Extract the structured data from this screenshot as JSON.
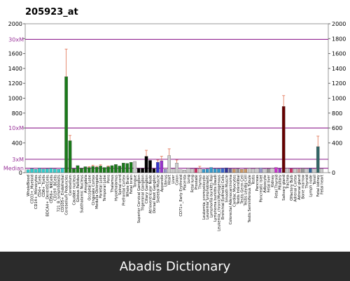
{
  "chart_data": {
    "type": "bar",
    "title": "205923_at",
    "ylim": [
      0,
      2000
    ],
    "yticks": [
      0,
      400,
      600,
      800,
      1000,
      1200,
      1400,
      1600,
      1800,
      2000
    ],
    "ytick_labels": [
      "0",
      "400",
      "600",
      "800",
      "1000",
      "1200",
      "1400",
      "1600",
      "1800",
      "2000"
    ],
    "reference_lines": [
      {
        "label": "30xM",
        "value": 1790,
        "color": "#993399"
      },
      {
        "label": "10xM",
        "value": 600,
        "color": "#993399"
      },
      {
        "label": "3xM",
        "value": 180,
        "color": "#993399"
      },
      {
        "label": "Median",
        "value": 60,
        "color": "#993399"
      }
    ],
    "category_labels": [
      "WholeBlood",
      "CD33+_Myeloid",
      "CD14+_Monocytes",
      "CD4+_Tcells",
      "CD8+_Tcells",
      "BDCA4+_DentriticCells",
      "CD56+_NKCells",
      "CD19+_BCells",
      "721_B_lymphoblasts",
      "CD105+_Endothelial",
      "Cerebellum Peduncles",
      "Cerebellum",
      "Caudate nucleus",
      "Globus Pallidus",
      "Subthalamic Nucleus",
      "Amygdala",
      "Occipital Lobe",
      "Cingulate Cortex",
      "Medulla Oblongata",
      "Parietal Lobe",
      "Temporal Lobe",
      "Pons",
      "Thalamus",
      "Hypothalamus",
      "Spinal cord",
      "Prefrontal Cortex",
      "Whole Brain",
      "Fetal brain",
      "Tongue",
      "Superior Cervical Ganglion",
      "Trigeminal Ganglion",
      "Ciliary Ganglion",
      "Atrioventricular Node",
      "Dorsal Root Ganglion",
      "Skeletal Muscle",
      "Appendix",
      "Uterus",
      "Heart",
      "Liver",
      "Colon",
      "CD71+_Early Erythroid",
      "Placenta",
      "Lung",
      "Fetal lung",
      "Prostate",
      "Thymus",
      "Leukemia_promyelocytic",
      "Leukemia_lymphoblastic",
      "Lymphoma burkitts Raji",
      "Lymphoma burkitts Daudi",
      "Leukemia_chronicMyelogenous",
      "Bronchial Epithelial Cells",
      "Smooth Muscle",
      "Colorectal Adenocarcinoma",
      "Cardiac Myocytes",
      "Testis Interstitial",
      "Testis Germ Cell",
      "Testis Leydig Cell",
      "Testis Seminiferous Tubule",
      "Testis",
      "Pancreas",
      "Pancreatic Islet",
      "Adipocyte",
      "Fetal liver",
      "Kidney",
      "Fetal Thyroid",
      "Pituitary",
      "Salivary gland",
      "Trachea",
      "Olfactory Bulb",
      "Adrenal Cortex",
      "Adrenal gland",
      "Bone marrow",
      "Thyroid",
      "Lymph node",
      "Tonsil",
      "Fetal kidney",
      "Fetal heart"
    ],
    "values": [
      40,
      55,
      45,
      60,
      48,
      52,
      58,
      50,
      46,
      62,
      1290,
      430,
      55,
      95,
      60,
      80,
      70,
      85,
      75,
      90,
      70,
      80,
      95,
      110,
      90,
      130,
      125,
      140,
      150,
      60,
      60,
      220,
      165,
      55,
      140,
      160,
      45,
      230,
      55,
      130,
      40,
      35,
      60,
      50,
      55,
      55,
      45,
      50,
      70,
      55,
      55,
      60,
      65,
      55,
      50,
      55,
      45,
      50,
      60,
      55,
      60,
      65,
      50,
      55,
      60,
      70,
      55,
      890,
      60,
      55,
      55,
      50,
      60,
      55,
      60,
      50,
      350,
      55
    ],
    "errors": [
      0,
      0,
      0,
      0,
      0,
      0,
      0,
      0,
      0,
      0,
      370,
      70,
      0,
      0,
      0,
      0,
      10,
      15,
      10,
      15,
      0,
      10,
      0,
      0,
      0,
      0,
      0,
      0,
      0,
      0,
      0,
      80,
      0,
      0,
      30,
      60,
      0,
      90,
      0,
      40,
      0,
      0,
      0,
      0,
      0,
      30,
      0,
      0,
      0,
      0,
      0,
      0,
      0,
      0,
      0,
      0,
      0,
      0,
      0,
      0,
      0,
      0,
      0,
      0,
      0,
      0,
      0,
      145,
      0,
      0,
      0,
      0,
      0,
      0,
      0,
      0,
      140,
      0
    ],
    "bar_colors": [
      "#33cccc",
      "#33cccc",
      "#33cccc",
      "#33cccc",
      "#33cccc",
      "#33cccc",
      "#33cccc",
      "#33cccc",
      "#33cccc",
      "#33cccc",
      "#1a7a1a",
      "#1a7a1a",
      "#1a7a1a",
      "#1a7a1a",
      "#1a7a1a",
      "#1a7a1a",
      "#1a7a1a",
      "#1a7a1a",
      "#1a7a1a",
      "#1a7a1a",
      "#1a7a1a",
      "#1a7a1a",
      "#1a7a1a",
      "#1a7a1a",
      "#1a7a1a",
      "#1a7a1a",
      "#1a7a1a",
      "#1a7a1a",
      "#cccccc",
      "#000000",
      "#000000",
      "#000000",
      "#000000",
      "#000000",
      "#3333cc",
      "#9933cc",
      "#9999cc",
      "#cccccc",
      "#cccccc",
      "#cccccc",
      "#cccccc",
      "#cccccc",
      "#cccccc",
      "#cccccc",
      "#cc3366",
      "#cccccc",
      "#3399cc",
      "#3399cc",
      "#3399cc",
      "#3399cc",
      "#3399cc",
      "#3366cc",
      "#333399",
      "#666699",
      "#cc9966",
      "#999999",
      "#cc9966",
      "#cc9966",
      "#cccccc",
      "#cccccc",
      "#cccccc",
      "#9999cc",
      "#cccccc",
      "#999999",
      "#cccccc",
      "#cc33cc",
      "#9933cc",
      "#660000",
      "#cccccc",
      "#cc3366",
      "#cccccc",
      "#cc9999",
      "#999999",
      "#cccccc",
      "#336699",
      "#cccccc",
      "#336666",
      "#cccccc"
    ],
    "grid": false,
    "legend": "none"
  },
  "footer": {
    "text": "Abadis Dictionary"
  }
}
